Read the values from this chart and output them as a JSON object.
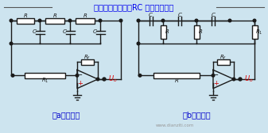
{
  "bg_color": "#cde4ef",
  "border_color": "#7a9aaa",
  "circuit_color": "#1a1a1a",
  "title": "运算放大器组成的RC 相移振荡电路",
  "title_color": "#0000ee",
  "label_a": "（a）滞后型",
  "label_b": "（b）超前型",
  "label_color": "#0000cc",
  "uo_color": "#dd0000",
  "watermark": "www.dianziti.com",
  "watermark_color": "#999999",
  "fig_w": 3.37,
  "fig_h": 1.68,
  "dpi": 100
}
